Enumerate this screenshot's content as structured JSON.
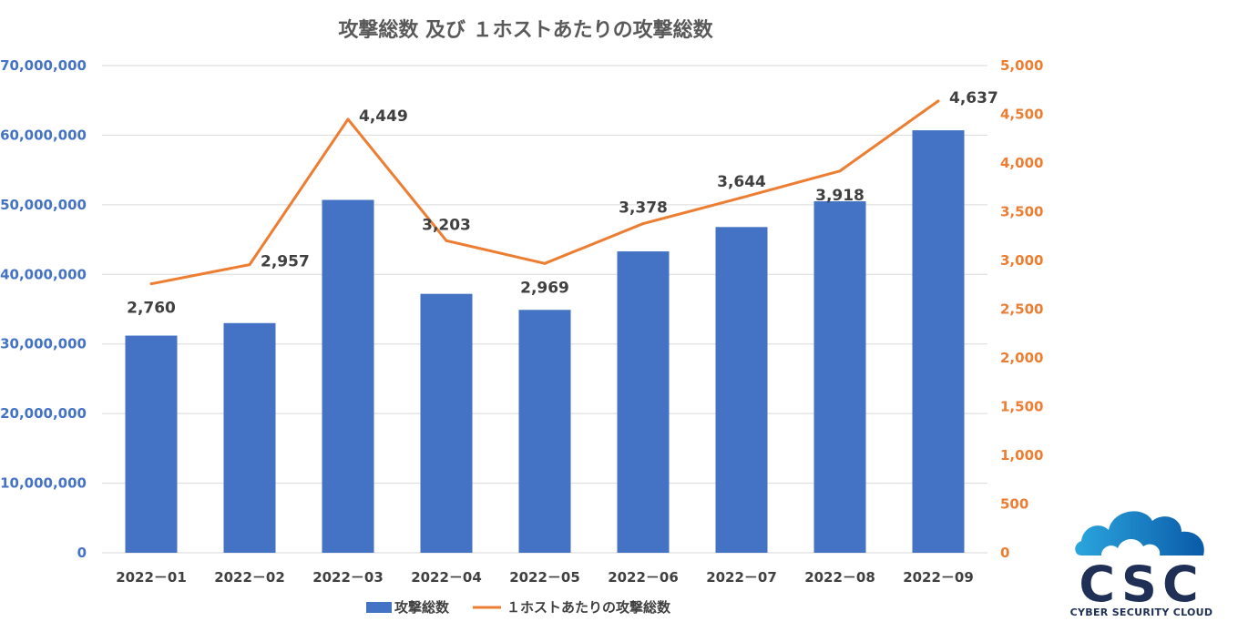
{
  "chart_data": {
    "type": "bar+line",
    "title": "攻撃総数 及び １ホストあたりの攻撃総数",
    "categories": [
      "2022－01",
      "2022－02",
      "2022－03",
      "2022－04",
      "2022－05",
      "2022－06",
      "2022－07",
      "2022－08",
      "2022－09"
    ],
    "series": [
      {
        "name": "攻撃総数",
        "type": "bar",
        "axis": "left",
        "color": "#4472c4",
        "values": [
          31200000,
          33000000,
          50700000,
          37200000,
          34900000,
          43300000,
          46800000,
          50500000,
          60700000
        ]
      },
      {
        "name": "１ホストあたりの攻撃総数",
        "type": "line",
        "axis": "right",
        "color": "#ed7d31",
        "values": [
          2760,
          2957,
          4449,
          3203,
          2969,
          3378,
          3644,
          3918,
          4637
        ],
        "labels": [
          "2,760",
          "2,957",
          "4,449",
          "3,203",
          "2,969",
          "3,378",
          "3,644",
          "3,918",
          "4,637"
        ]
      }
    ],
    "left_axis": {
      "min": 0,
      "max": 70000000,
      "ticks": [
        "0",
        "10,000,000",
        "20,000,000",
        "30,000,000",
        "40,000,000",
        "50,000,000",
        "60,000,000",
        "70,000,000"
      ]
    },
    "right_axis": {
      "min": 0,
      "max": 5000,
      "ticks": [
        "0",
        "500",
        "1,000",
        "1,500",
        "2,000",
        "2,500",
        "3,000",
        "3,500",
        "4,000",
        "4,500",
        "5,000"
      ]
    },
    "legend": [
      "攻撃総数",
      "１ホストあたりの攻撃総数"
    ],
    "legend_position": "bottom"
  },
  "logo": {
    "letters": "CSC",
    "name": "CYBER SECURITY CLOUD"
  }
}
